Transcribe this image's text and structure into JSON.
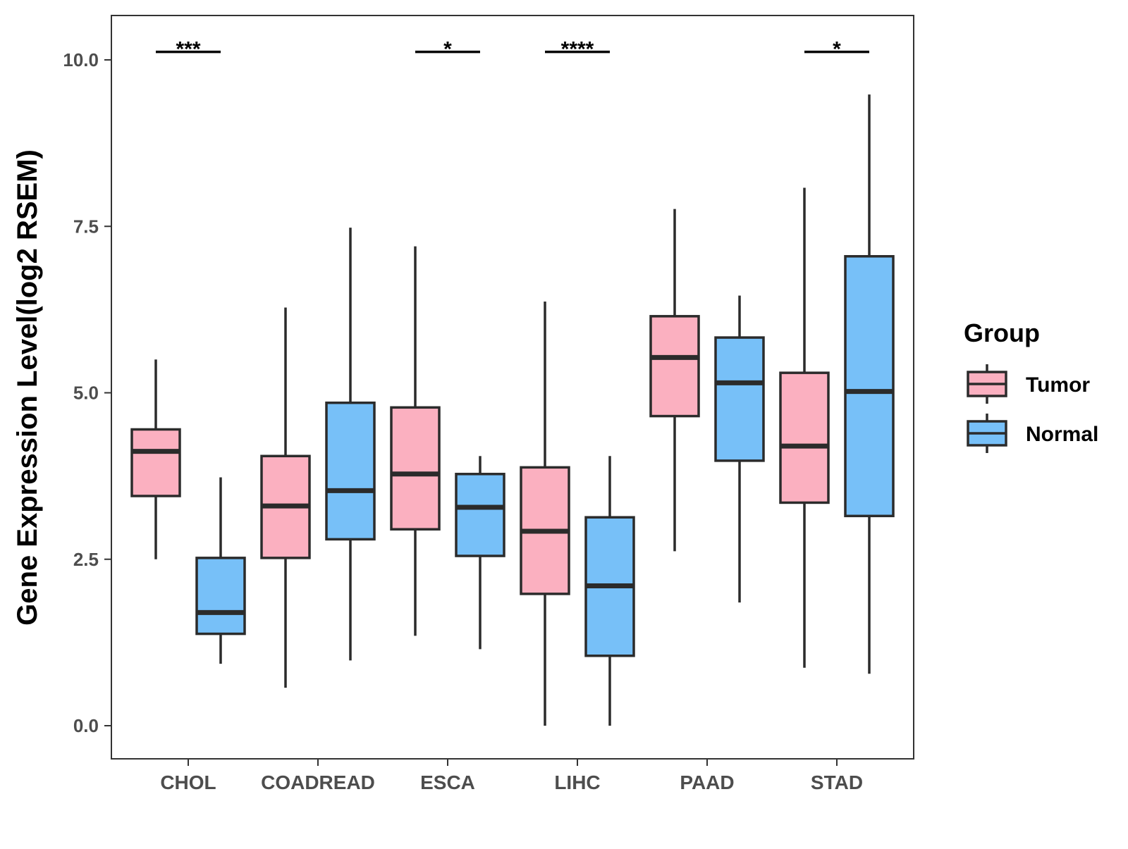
{
  "chart_data": {
    "type": "boxplot",
    "title": "",
    "xlabel": "",
    "ylabel": "Gene Expression Level(log2 RSEM)",
    "ylim": [
      -0.5,
      10.7
    ],
    "yticks": [
      0.0,
      2.5,
      5.0,
      7.5,
      10.0
    ],
    "ytick_labels": [
      "0.0",
      "2.5",
      "5.0",
      "7.5",
      "10.0"
    ],
    "categories": [
      "CHOL",
      "COADREAD",
      "ESCA",
      "LIHC",
      "PAAD",
      "STAD"
    ],
    "legend": {
      "title": "Group",
      "position": "right",
      "entries": [
        {
          "name": "Tumor",
          "color": "#fbb0c0"
        },
        {
          "name": "Normal",
          "color": "#77c0f8"
        }
      ]
    },
    "series": [
      {
        "name": "Tumor",
        "color": "#fbb0c0",
        "boxes": [
          {
            "min": 2.5,
            "q1": 3.45,
            "median": 4.12,
            "q3": 4.45,
            "max": 5.5
          },
          {
            "min": 0.57,
            "q1": 2.52,
            "median": 3.3,
            "q3": 4.05,
            "max": 6.28
          },
          {
            "min": 1.35,
            "q1": 2.95,
            "median": 3.78,
            "q3": 4.78,
            "max": 7.2
          },
          {
            "min": 0.0,
            "q1": 1.98,
            "median": 2.92,
            "q3": 3.88,
            "max": 6.37
          },
          {
            "min": 2.62,
            "q1": 4.65,
            "median": 5.53,
            "q3": 6.15,
            "max": 7.76
          },
          {
            "min": 0.87,
            "q1": 3.35,
            "median": 4.2,
            "q3": 5.3,
            "max": 8.08
          }
        ]
      },
      {
        "name": "Normal",
        "color": "#77c0f8",
        "boxes": [
          {
            "min": 0.93,
            "q1": 1.38,
            "median": 1.7,
            "q3": 2.52,
            "max": 3.73
          },
          {
            "min": 0.98,
            "q1": 2.8,
            "median": 3.53,
            "q3": 4.85,
            "max": 7.48
          },
          {
            "min": 1.15,
            "q1": 2.55,
            "median": 3.28,
            "q3": 3.78,
            "max": 4.05
          },
          {
            "min": 0.0,
            "q1": 1.05,
            "median": 2.1,
            "q3": 3.13,
            "max": 4.05
          },
          {
            "min": 1.85,
            "q1": 3.98,
            "median": 5.15,
            "q3": 5.83,
            "max": 6.46
          },
          {
            "min": 0.78,
            "q1": 3.15,
            "median": 5.02,
            "q3": 7.05,
            "max": 9.48
          }
        ]
      }
    ],
    "significance": [
      {
        "category": "CHOL",
        "label": "***"
      },
      {
        "category": "ESCA",
        "label": "*"
      },
      {
        "category": "LIHC",
        "label": "****"
      },
      {
        "category": "STAD",
        "label": "*"
      }
    ],
    "significance_y": 10.12,
    "grid": false
  }
}
